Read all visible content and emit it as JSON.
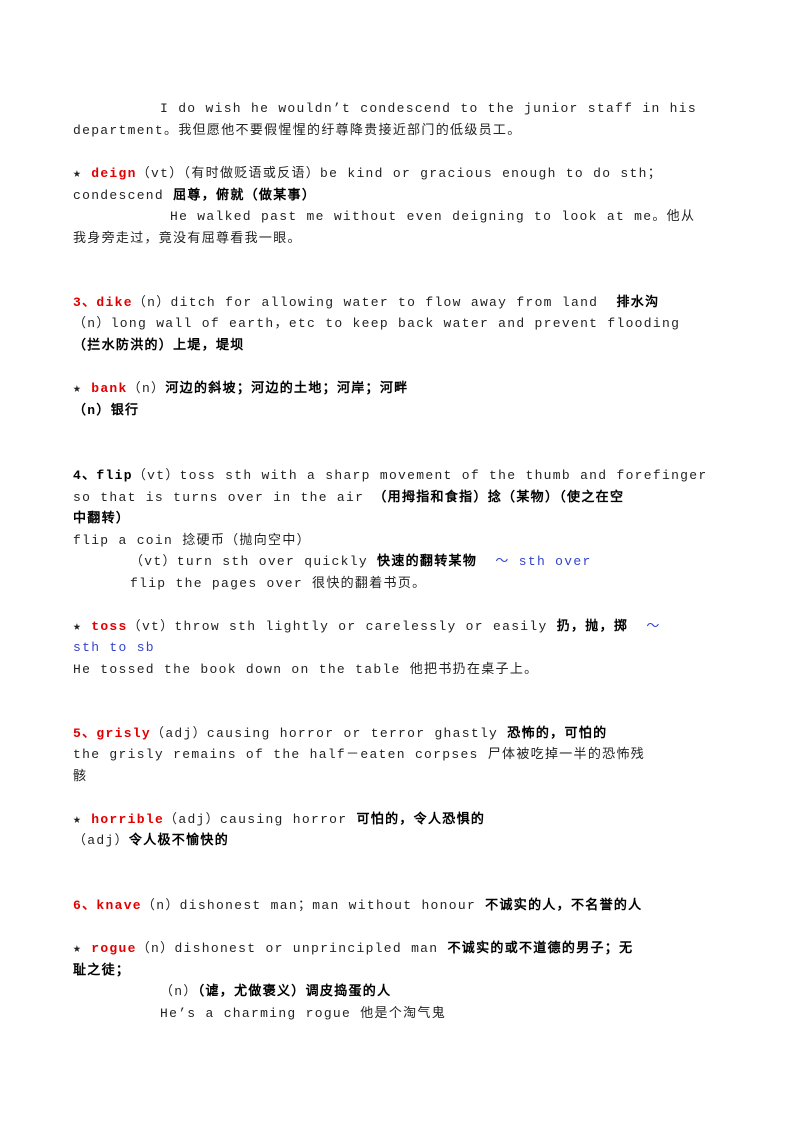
{
  "lines": [
    [
      "I do wish he wouldn’t condescend to the junior staff in his"
    ],
    [
      "department。我但愿他不要假惺惺的纡尊降贵接近部门的低级员工。"
    ],
    [
      "★ ",
      "deign",
      "（vt）（有时做贬语或反语）be kind or gracious enough to do sth；"
    ],
    [
      "condescend ",
      "屈尊，俯就（做某事）"
    ],
    [
      "He walked past me without even deigning to look at me。他从"
    ],
    [
      "我身旁走过，竟没有屈尊看我一眼。"
    ],
    [
      "3、dike",
      "（n）ditch for allowing water to flow away from land  ",
      "排水沟"
    ],
    [
      "（n）long wall of earth，etc to keep back water and prevent flooding"
    ],
    [
      "（拦水防洪的）上堤，堤坝"
    ],
    [
      "★ ",
      "bank",
      "（n）",
      "河边的斜坡；河边的土地；河岸；河畔"
    ],
    [
      "（n）银行"
    ],
    [
      "4、flip",
      "（vt）toss sth with a sharp movement of the thumb and forefinger"
    ],
    [
      "so that is turns over in the air ",
      "（用拇指和食指）捻（某物）（使之在空"
    ],
    [
      "中翻转）"
    ],
    [
      "flip a coin 捻硬币（抛向空中）"
    ],
    [
      "（vt）turn sth over quickly ",
      "快速的翻转某物",
      "  ～ sth over"
    ],
    [
      "flip the pages over 很快的翻着书页。"
    ],
    [
      "★ ",
      "toss",
      "（vt）throw sth lightly or carelessly or easily ",
      "扔，抛，掷",
      "  ～"
    ],
    [
      "sth to sb"
    ],
    [
      "He tossed the book down on the table 他把书扔在桌子上。"
    ],
    [
      "5、grisly",
      "（adj）causing horror or terror ghastly ",
      "恐怖的，可怕的"
    ],
    [
      "the grisly remains of the half－eaten corpses 尸体被吃掉一半的恐怖残"
    ],
    [
      "骸"
    ],
    [
      "★ ",
      "horrible",
      "（adj）causing horror ",
      "可怕的，令人恐惧的"
    ],
    [
      "（adj）",
      "令人极不愉快的"
    ],
    [
      "6、knave",
      "（n）dishonest man；man without honour ",
      "不诚实的人，不名誉的人"
    ],
    [
      "★ ",
      "rogue",
      "（n）dishonest or unprincipled man ",
      "不诚实的或不道德的男子；无"
    ],
    [
      "耻之徒；"
    ],
    [
      "（n）",
      "（谑，尤做褒义）调皮捣蛋的人"
    ],
    [
      "He’s a charming rogue 他是个淘气鬼"
    ]
  ]
}
